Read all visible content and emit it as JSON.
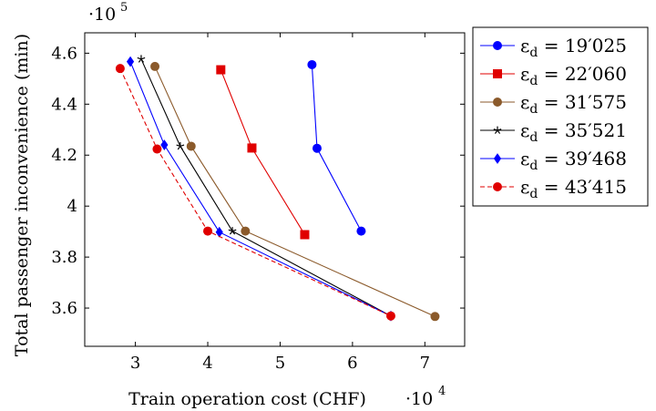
{
  "chart_data": {
    "type": "line",
    "xlabel": "Train operation cost (CHF)",
    "ylabel": "Total passenger inconvenience (min)",
    "x_multiplier": "·10",
    "x_multiplier_exp": "4",
    "y_multiplier": "·10",
    "y_multiplier_exp": "5",
    "xlim": [
      2.3,
      7.55
    ],
    "ylim": [
      3.45,
      4.68
    ],
    "xticks": [
      3,
      4,
      5,
      6,
      7
    ],
    "yticks": [
      3.6,
      3.8,
      4,
      4.2,
      4.4,
      4.6
    ],
    "xtick_labels": [
      "3",
      "4",
      "5",
      "6",
      "7"
    ],
    "ytick_labels": [
      "3.6",
      "3.8",
      "4",
      "4.2",
      "4.4",
      "4.6"
    ],
    "grid": false,
    "legend_position": "outside-right",
    "series": [
      {
        "name": "19′025",
        "color": "#0000ff",
        "marker": "circle",
        "dashed": false,
        "x": [
          5.44,
          5.51,
          6.12
        ],
        "y": [
          4.555,
          4.227,
          3.902
        ]
      },
      {
        "name": "22′060",
        "color": "#e00000",
        "marker": "square",
        "dashed": false,
        "x": [
          4.18,
          4.61,
          5.34
        ],
        "y": [
          4.535,
          4.228,
          3.888
        ]
      },
      {
        "name": "31′575",
        "color": "#8b5a2b",
        "marker": "circle",
        "dashed": false,
        "x": [
          3.27,
          3.77,
          4.52,
          7.14
        ],
        "y": [
          4.548,
          4.235,
          3.902,
          3.567
        ]
      },
      {
        "name": "35′521",
        "color": "#000000",
        "marker": "star",
        "dashed": false,
        "x": [
          3.08,
          3.62,
          4.34,
          6.53
        ],
        "y": [
          4.577,
          4.235,
          3.902,
          3.569
        ]
      },
      {
        "name": "39′468",
        "color": "#0000ff",
        "marker": "diamond",
        "dashed": false,
        "x": [
          2.93,
          3.4,
          4.16,
          6.53
        ],
        "y": [
          4.567,
          4.24,
          3.898,
          3.569
        ]
      },
      {
        "name": "43′415",
        "color": "#e00000",
        "marker": "circle",
        "dashed": true,
        "x": [
          2.79,
          3.3,
          4.0,
          6.53
        ],
        "y": [
          4.54,
          4.224,
          3.902,
          3.569
        ]
      }
    ],
    "legend_symbol": "ε",
    "legend_subscript": "d",
    "legend_equals": "="
  }
}
